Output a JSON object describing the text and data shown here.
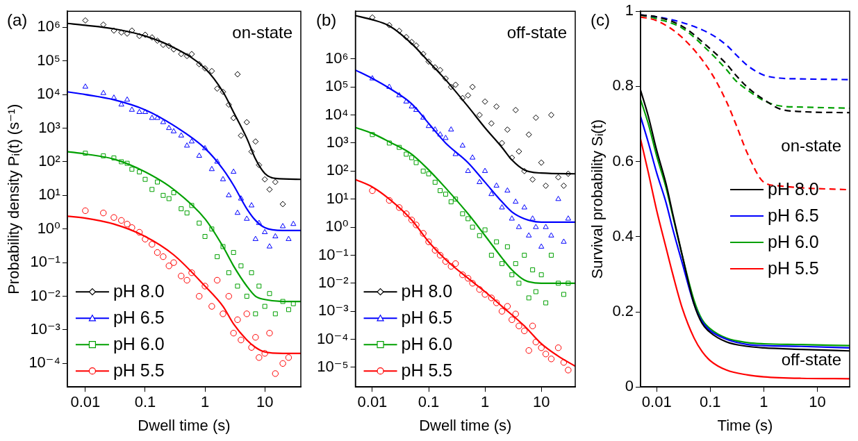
{
  "chart_data": [
    {
      "type": "scatter",
      "xlabel": "Dwell time (s)",
      "ylabel": "Probability density Pᵢ(t) (s⁻¹)",
      "log": "xy",
      "grid": false,
      "legend": "bottom left",
      "annotations": [
        "(a)",
        "on-state"
      ],
      "xlim": [
        0.005,
        40
      ],
      "xticks": [
        0.01,
        0.1,
        1,
        10
      ],
      "ylim": [
        2e-05,
        3000000
      ],
      "yticks": [
        {
          "value": 0.0001,
          "label": "10⁻⁴"
        },
        {
          "value": 0.001,
          "label": "10⁻³"
        },
        {
          "value": 0.01,
          "label": "10⁻²"
        },
        {
          "value": 0.1,
          "label": "10⁻¹"
        },
        {
          "value": 1,
          "label": "10⁰"
        },
        {
          "value": 10,
          "label": "10¹"
        },
        {
          "value": 100,
          "label": "10²"
        },
        {
          "value": 1000,
          "label": "10³"
        },
        {
          "value": 10000,
          "label": "10⁴"
        },
        {
          "value": 100000,
          "label": "10⁵"
        },
        {
          "value": 1000000,
          "label": "10⁶"
        }
      ],
      "x": [
        0.01,
        0.02,
        0.03,
        0.04,
        0.05,
        0.06,
        0.08,
        0.1,
        0.13,
        0.16,
        0.2,
        0.25,
        0.3,
        0.4,
        0.5,
        0.6,
        0.8,
        1,
        1.3,
        1.6,
        2,
        2.5,
        3,
        3.5,
        4,
        5,
        6,
        7,
        8,
        10,
        12,
        15,
        20,
        25,
        30
      ],
      "series": [
        {
          "name": "pH 8.0",
          "color": "#000000",
          "marker": "diamond",
          "values": [
            1600000,
            1200000,
            800000,
            700000,
            650000,
            800000,
            550000,
            600000,
            500000,
            400000,
            300000,
            280000,
            220000,
            160000,
            140000,
            160000,
            80000,
            60000,
            50000,
            15000,
            12000,
            5000,
            2000,
            40000,
            600,
            1500,
            200,
            400,
            80,
            30,
            15,
            25,
            5.5,
            null,
            null
          ]
        },
        {
          "name": "pH 6.5",
          "color": "#0000ff",
          "marker": "triangle",
          "values": [
            17000,
            11000,
            8000,
            5000,
            7000,
            3500,
            3000,
            3000,
            2000,
            2000,
            1500,
            1000,
            800,
            600,
            300,
            400,
            150,
            250,
            60,
            100,
            30,
            10,
            50,
            3,
            8,
            2,
            5,
            0.5,
            1.5,
            0.8,
            0.3,
            0.6,
            1.2,
            0.5,
            1.4
          ]
        },
        {
          "name": "pH 6.0",
          "color": "#00a000",
          "marker": "square",
          "values": [
            180,
            150,
            130,
            100,
            90,
            60,
            50,
            30,
            15,
            25,
            10,
            8,
            12,
            4,
            3,
            5,
            1.5,
            0.6,
            1,
            0.15,
            0.3,
            0.05,
            0.2,
            0.02,
            0.08,
            0.01,
            0.05,
            0.003,
            0.02,
            0.005,
            0.012,
            0.003,
            0.007,
            0.004,
            0.006
          ]
        },
        {
          "name": "pH 5.5",
          "color": "#ff0000",
          "marker": "circle",
          "values": [
            3.5,
            3,
            2.2,
            1.8,
            1.4,
            1.1,
            0.8,
            0.5,
            0.35,
            0.2,
            0.15,
            0.08,
            0.1,
            0.04,
            0.03,
            0.05,
            0.01,
            0.02,
            0.005,
            0.03,
            0.003,
            0.01,
            0.0008,
            0.002,
            0.0005,
            0.003,
            0.0003,
            0.0006,
            0.00015,
            0.0002,
            0.0008,
            5e-05,
            0.0001,
            0.00015,
            null
          ]
        },
        {
          "type": "line",
          "color": "#000000",
          "marker": "none",
          "x": [
            0.005,
            0.01,
            0.03,
            0.1,
            0.3,
            1,
            2,
            3,
            5,
            7,
            10,
            15,
            40
          ],
          "values": [
            1300000,
            1150000,
            900000,
            550000,
            250000,
            60000,
            12000,
            3000,
            500,
            120,
            45,
            32,
            30
          ]
        },
        {
          "type": "line",
          "color": "#0000ff",
          "marker": "none",
          "x": [
            0.005,
            0.01,
            0.03,
            0.1,
            0.3,
            1,
            2,
            3,
            5,
            7,
            10,
            20,
            40
          ],
          "values": [
            12000,
            10000,
            7000,
            3500,
            1200,
            250,
            60,
            20,
            4,
            1.8,
            1.1,
            0.9,
            0.9
          ]
        },
        {
          "type": "line",
          "color": "#00a000",
          "marker": "none",
          "x": [
            0.005,
            0.01,
            0.03,
            0.1,
            0.3,
            1,
            2,
            3,
            5,
            7,
            10,
            20,
            40
          ],
          "values": [
            200,
            170,
            120,
            50,
            15,
            2,
            0.3,
            0.08,
            0.02,
            0.01,
            0.008,
            0.007,
            0.007
          ]
        },
        {
          "type": "line",
          "color": "#ff0000",
          "marker": "none",
          "x": [
            0.005,
            0.01,
            0.03,
            0.1,
            0.3,
            1,
            2,
            3,
            5,
            7,
            10,
            20,
            40
          ],
          "values": [
            2.4,
            2.1,
            1.4,
            0.6,
            0.17,
            0.02,
            0.005,
            0.0015,
            0.0005,
            0.0003,
            0.00022,
            0.0002,
            0.0002
          ]
        }
      ]
    },
    {
      "type": "scatter",
      "xlabel": "Dwell time (s)",
      "log": "xy",
      "grid": false,
      "legend": "bottom left",
      "annotations": [
        "(b)",
        "off-state"
      ],
      "xlim": [
        0.005,
        40
      ],
      "xticks": [
        0.01,
        0.1,
        1,
        10
      ],
      "ylim": [
        2e-06,
        50000000
      ],
      "yticks": [
        {
          "value": 1e-05,
          "label": "10⁻⁵"
        },
        {
          "value": 0.0001,
          "label": "10⁻⁴"
        },
        {
          "value": 0.001,
          "label": "10⁻³"
        },
        {
          "value": 0.01,
          "label": "10⁻²"
        },
        {
          "value": 0.1,
          "label": "10⁻¹"
        },
        {
          "value": 1,
          "label": "10⁰"
        },
        {
          "value": 10,
          "label": "10¹"
        },
        {
          "value": 100,
          "label": "10²"
        },
        {
          "value": 1000,
          "label": "10³"
        },
        {
          "value": 10000,
          "label": "10⁴"
        },
        {
          "value": 100000,
          "label": "10⁵"
        },
        {
          "value": 1000000,
          "label": "10⁶"
        }
      ],
      "x": [
        0.01,
        0.02,
        0.03,
        0.04,
        0.05,
        0.06,
        0.08,
        0.1,
        0.13,
        0.16,
        0.2,
        0.25,
        0.3,
        0.4,
        0.5,
        0.6,
        0.8,
        1,
        1.3,
        1.6,
        2,
        2.5,
        3,
        3.5,
        4,
        5,
        6,
        7,
        8,
        10,
        12,
        15,
        20,
        25,
        30
      ],
      "series": [
        {
          "name": "pH 8.0",
          "color": "#000000",
          "marker": "diamond",
          "values": [
            30000000,
            16000000,
            10000000,
            6000000,
            4000000,
            3000000,
            1500000,
            800000,
            500000,
            400000,
            200000,
            100000,
            120000,
            40000,
            50000,
            100000,
            10000,
            30000,
            5000,
            20000,
            1000,
            3000,
            300,
            15000,
            500,
            100,
            2000,
            50,
            8000,
            200,
            30,
            10000,
            60,
            30,
            80
          ]
        },
        {
          "name": "pH 6.5",
          "color": "#0000ff",
          "marker": "triangle",
          "values": [
            200000,
            100000,
            50000,
            30000,
            20000,
            15000,
            8000,
            4000,
            3000,
            2000,
            1500,
            3000,
            400,
            800,
            100,
            300,
            40,
            100,
            15,
            30,
            5,
            20,
            2,
            8,
            1,
            5,
            0.5,
            2,
            1,
            0.2,
            1,
            0.5,
            10,
            0.3,
            2
          ]
        },
        {
          "name": "pH 6.0",
          "color": "#00a000",
          "marker": "square",
          "values": [
            2000,
            1000,
            700,
            400,
            300,
            200,
            100,
            80,
            40,
            20,
            15,
            8,
            10,
            3,
            2,
            1,
            0.5,
            0.8,
            0.1,
            0.3,
            0.05,
            0.2,
            0.02,
            0.05,
            0.01,
            0.1,
            0.003,
            0.03,
            0.005,
            0.02,
            0.002,
            0.1,
            0.01,
            0.004,
            0.01
          ]
        },
        {
          "name": "pH 5.5",
          "color": "#ff0000",
          "marker": "circle",
          "values": [
            20,
            9,
            5,
            3,
            1.8,
            1.2,
            0.6,
            0.3,
            0.15,
            0.1,
            0.06,
            0.04,
            0.05,
            0.02,
            0.015,
            0.01,
            0.006,
            0.004,
            0.003,
            0.002,
            0.001,
            0.0015,
            0.0005,
            0.0008,
            0.0003,
            0.0002,
            4e-05,
            0.0003,
            8e-05,
            5e-05,
            3e-05,
            2e-05,
            5e-05,
            1.5e-05,
            8e-06
          ]
        },
        {
          "type": "line",
          "color": "#000000",
          "marker": "none",
          "x": [
            0.005,
            0.01,
            0.02,
            0.05,
            0.1,
            0.2,
            0.5,
            1,
            2,
            3,
            5,
            10,
            40
          ],
          "values": [
            35000000,
            25000000,
            15000000,
            3500000,
            800000,
            180000,
            20000,
            3500,
            700,
            250,
            110,
            85,
            80
          ]
        },
        {
          "type": "line",
          "color": "#0000ff",
          "marker": "none",
          "x": [
            0.005,
            0.01,
            0.02,
            0.05,
            0.1,
            0.2,
            0.5,
            1,
            2,
            3,
            5,
            10,
            40
          ],
          "values": [
            400000,
            200000,
            90000,
            25000,
            5000,
            1000,
            200,
            40,
            8,
            3.5,
            2,
            1.5,
            1.5
          ]
        },
        {
          "type": "line",
          "color": "#00a000",
          "marker": "none",
          "x": [
            0.005,
            0.01,
            0.02,
            0.05,
            0.1,
            0.2,
            0.5,
            1,
            2,
            3,
            5,
            10,
            40
          ],
          "values": [
            3600,
            2200,
            1100,
            400,
            110,
            25,
            3,
            0.5,
            0.08,
            0.03,
            0.013,
            0.01,
            0.01
          ]
        },
        {
          "type": "line",
          "color": "#ff0000",
          "marker": "none",
          "x": [
            0.005,
            0.01,
            0.02,
            0.05,
            0.1,
            0.2,
            0.5,
            1,
            2,
            5,
            10,
            20,
            40
          ],
          "values": [
            50,
            27,
            10,
            1.8,
            0.3,
            0.07,
            0.015,
            0.005,
            0.0015,
            0.0003,
            7e-05,
            2.5e-05,
            1.1e-05
          ]
        }
      ]
    },
    {
      "type": "line",
      "xlabel": "Time (s)",
      "ylabel": "Survival probability Sᵢ(t)",
      "log": "x",
      "grid": false,
      "legend": "right",
      "marker": "none",
      "annotations": [
        "(c)",
        "on-state",
        "off-state"
      ],
      "xlim": [
        0.005,
        40
      ],
      "xticks": [
        0.01,
        0.1,
        1,
        10
      ],
      "ylim": [
        0,
        1
      ],
      "yticks": [
        0,
        0.2,
        0.4,
        0.6,
        0.8,
        1
      ],
      "x": [
        0.005,
        0.007,
        0.01,
        0.015,
        0.02,
        0.03,
        0.05,
        0.07,
        0.1,
        0.2,
        0.5,
        1,
        5,
        40
      ],
      "series": [
        {
          "name": "pH 8.0",
          "color": "#000000",
          "values": [
            0.79,
            0.72,
            0.63,
            0.54,
            0.46,
            0.35,
            0.22,
            0.17,
            0.145,
            0.12,
            0.108,
            0.104,
            0.1,
            0.096
          ]
        },
        {
          "name": "pH 6.5",
          "color": "#0000ff",
          "values": [
            0.72,
            0.65,
            0.57,
            0.49,
            0.42,
            0.33,
            0.22,
            0.175,
            0.15,
            0.127,
            0.113,
            0.11,
            0.108,
            0.104
          ]
        },
        {
          "name": "pH 6.0",
          "color": "#00a000",
          "values": [
            0.765,
            0.7,
            0.615,
            0.53,
            0.455,
            0.35,
            0.23,
            0.18,
            0.155,
            0.13,
            0.118,
            0.115,
            0.113,
            0.11
          ]
        },
        {
          "name": "pH 5.5",
          "color": "#ff0000",
          "values": [
            0.66,
            0.57,
            0.47,
            0.37,
            0.3,
            0.21,
            0.13,
            0.095,
            0.07,
            0.045,
            0.032,
            0.027,
            0.023,
            0.022
          ]
        },
        {
          "color": "#000000",
          "line_style": "dashed",
          "x": [
            0.005,
            0.01,
            0.03,
            0.1,
            0.2,
            0.3,
            0.5,
            1,
            2,
            5,
            40
          ],
          "values": [
            0.99,
            0.985,
            0.96,
            0.9,
            0.86,
            0.83,
            0.797,
            0.765,
            0.74,
            0.733,
            0.73
          ]
        },
        {
          "color": "#0000ff",
          "line_style": "dashed",
          "x": [
            0.005,
            0.01,
            0.03,
            0.1,
            0.2,
            0.3,
            0.5,
            1,
            2,
            5,
            40
          ],
          "values": [
            0.99,
            0.985,
            0.97,
            0.94,
            0.91,
            0.885,
            0.855,
            0.83,
            0.822,
            0.82,
            0.818
          ]
        },
        {
          "color": "#00a000",
          "line_style": "dashed",
          "x": [
            0.005,
            0.01,
            0.03,
            0.1,
            0.2,
            0.3,
            0.5,
            1,
            2,
            5,
            40
          ],
          "values": [
            0.99,
            0.98,
            0.955,
            0.89,
            0.845,
            0.815,
            0.79,
            0.762,
            0.748,
            0.745,
            0.742
          ]
        },
        {
          "color": "#ff0000",
          "line_style": "dashed",
          "x": [
            0.005,
            0.01,
            0.03,
            0.1,
            0.2,
            0.3,
            0.5,
            1,
            2,
            5,
            40
          ],
          "values": [
            0.985,
            0.975,
            0.93,
            0.84,
            0.76,
            0.7,
            0.62,
            0.545,
            0.535,
            0.53,
            0.525
          ]
        }
      ]
    }
  ]
}
